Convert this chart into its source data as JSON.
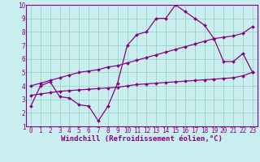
{
  "line1_x": [
    0,
    1,
    2,
    3,
    4,
    5,
    6,
    7,
    8,
    9,
    10,
    11,
    12,
    13,
    14,
    15,
    16,
    17,
    18,
    19,
    20,
    21,
    22,
    23
  ],
  "line1_y": [
    2.5,
    4.0,
    4.3,
    3.2,
    3.1,
    2.6,
    2.5,
    1.4,
    2.5,
    4.2,
    7.0,
    7.8,
    8.0,
    9.0,
    9.0,
    10.0,
    9.5,
    9.0,
    8.5,
    7.5,
    5.8,
    5.8,
    6.4,
    5.0
  ],
  "line2_x": [
    0,
    1,
    2,
    3,
    4,
    5,
    6,
    7,
    8,
    9,
    10,
    11,
    12,
    13,
    14,
    15,
    16,
    17,
    18,
    19,
    20,
    21,
    22,
    23
  ],
  "line2_y": [
    4.0,
    4.2,
    4.4,
    4.6,
    4.8,
    5.0,
    5.1,
    5.2,
    5.4,
    5.5,
    5.7,
    5.9,
    6.1,
    6.3,
    6.5,
    6.7,
    6.9,
    7.1,
    7.3,
    7.5,
    7.6,
    7.7,
    7.9,
    8.4
  ],
  "line3_x": [
    0,
    1,
    2,
    3,
    4,
    5,
    6,
    7,
    8,
    9,
    10,
    11,
    12,
    13,
    14,
    15,
    16,
    17,
    18,
    19,
    20,
    21,
    22,
    23
  ],
  "line3_y": [
    3.3,
    3.4,
    3.5,
    3.6,
    3.65,
    3.7,
    3.75,
    3.8,
    3.85,
    3.9,
    4.0,
    4.1,
    4.15,
    4.2,
    4.25,
    4.3,
    4.35,
    4.4,
    4.45,
    4.5,
    4.55,
    4.6,
    4.75,
    5.0
  ],
  "line_color": "#880088",
  "bg_color": "#c8eef0",
  "grid_color": "#99ccbb",
  "xlabel": "Windchill (Refroidissement éolien,°C)",
  "xlim": [
    -0.5,
    23.5
  ],
  "ylim": [
    1,
    10
  ],
  "xticks": [
    0,
    1,
    2,
    3,
    4,
    5,
    6,
    7,
    8,
    9,
    10,
    11,
    12,
    13,
    14,
    15,
    16,
    17,
    18,
    19,
    20,
    21,
    22,
    23
  ],
  "yticks": [
    1,
    2,
    3,
    4,
    5,
    6,
    7,
    8,
    9,
    10
  ],
  "marker": "D",
  "markersize": 2,
  "linewidth": 0.9,
  "xlabel_fontsize": 6.5,
  "tick_fontsize": 5.5
}
